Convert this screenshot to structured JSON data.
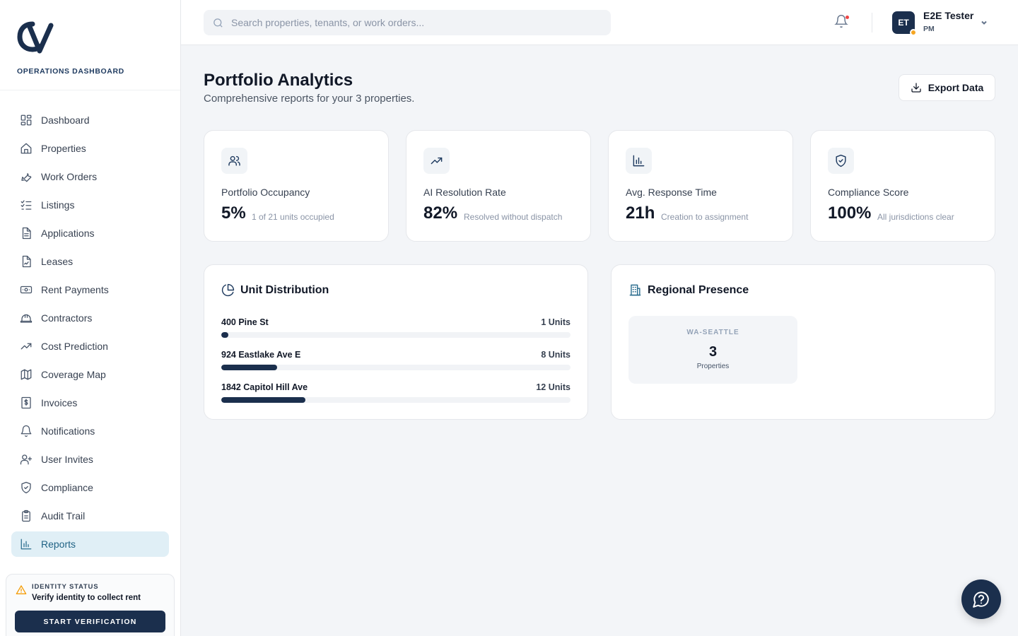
{
  "app": {
    "brand_subtitle": "OPERATIONS DASHBOARD",
    "accent_color": "#1b2f4d",
    "active_color": "#e0eff6"
  },
  "sidebar": {
    "items": [
      {
        "label": "Dashboard",
        "icon": "dashboard-icon"
      },
      {
        "label": "Properties",
        "icon": "home-icon"
      },
      {
        "label": "Work Orders",
        "icon": "wrench-icon"
      },
      {
        "label": "Listings",
        "icon": "checklist-icon"
      },
      {
        "label": "Applications",
        "icon": "document-icon"
      },
      {
        "label": "Leases",
        "icon": "signed-document-icon"
      },
      {
        "label": "Rent Payments",
        "icon": "banknote-icon"
      },
      {
        "label": "Contractors",
        "icon": "hard-hat-icon"
      },
      {
        "label": "Cost Prediction",
        "icon": "trending-up-icon"
      },
      {
        "label": "Coverage Map",
        "icon": "map-icon"
      },
      {
        "label": "Invoices",
        "icon": "invoice-icon"
      },
      {
        "label": "Notifications",
        "icon": "bell-icon"
      },
      {
        "label": "User Invites",
        "icon": "user-plus-icon"
      },
      {
        "label": "Compliance",
        "icon": "shield-check-icon"
      },
      {
        "label": "Audit Trail",
        "icon": "clipboard-icon"
      },
      {
        "label": "Reports",
        "icon": "bar-chart-icon",
        "active": true
      }
    ],
    "identity": {
      "title": "IDENTITY STATUS",
      "message": "Verify identity to collect rent",
      "button": "START VERIFICATION"
    }
  },
  "topbar": {
    "search_placeholder": "Search properties, tenants, or work orders...",
    "user": {
      "initials": "ET",
      "name": "E2E Tester",
      "role": "PM"
    }
  },
  "main": {
    "title": "Portfolio Analytics",
    "subtitle": "Comprehensive reports for your 3 properties.",
    "export_label": "Export Data",
    "stats": [
      {
        "label": "Portfolio Occupancy",
        "value": "5%",
        "note": "1 of 21 units occupied",
        "icon": "users-icon"
      },
      {
        "label": "AI Resolution Rate",
        "value": "82%",
        "note": "Resolved without dispatch",
        "icon": "trending-up-icon"
      },
      {
        "label": "Avg. Response Time",
        "value": "21h",
        "note": "Creation to assignment",
        "icon": "bar-chart-icon"
      },
      {
        "label": "Compliance Score",
        "value": "100%",
        "note": "All jurisdictions clear",
        "icon": "shield-check-icon"
      }
    ],
    "unit_distribution": {
      "title": "Unit Distribution",
      "rows": [
        {
          "name": "400 Pine St",
          "count_label": "1 Units",
          "fraction": 0.02
        },
        {
          "name": "924 Eastlake Ave E",
          "count_label": "8 Units",
          "fraction": 0.16
        },
        {
          "name": "1842 Capitol Hill Ave",
          "count_label": "12 Units",
          "fraction": 0.24
        }
      ]
    },
    "regional_presence": {
      "title": "Regional Presence",
      "regions": [
        {
          "code": "WA-SEATTLE",
          "count": "3",
          "caption": "Properties"
        }
      ]
    }
  }
}
